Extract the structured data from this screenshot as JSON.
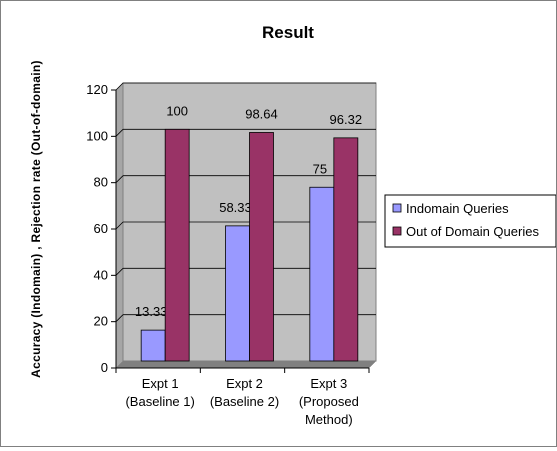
{
  "chart_data": {
    "type": "bar",
    "title": "Result",
    "ylabel": "Accuracy (Indomain) , Rejection rate (Out-of-domain)",
    "xlabel": "",
    "ylim": [
      0,
      120
    ],
    "ytick_step": 20,
    "yticks": [
      "0",
      "20",
      "40",
      "60",
      "80",
      "100",
      "120"
    ],
    "grid": true,
    "legend_position": "right",
    "categories": [
      [
        "Expt 1",
        "(Baseline 1)"
      ],
      [
        "Expt 2",
        "(Baseline 2)"
      ],
      [
        "Expt 3",
        "(Proposed",
        "Method)"
      ]
    ],
    "series": [
      {
        "name": "Indomain Queries",
        "color": "#9999ff",
        "values": [
          13.33,
          58.33,
          75
        ],
        "labels": [
          "13.33",
          "58.33",
          "75"
        ]
      },
      {
        "name": "Out of Domain Queries",
        "color": "#993366",
        "values": [
          100,
          98.64,
          96.32
        ],
        "labels": [
          "100",
          "98.64",
          "96.32"
        ]
      }
    ],
    "plot_background": "#c0c0c0"
  }
}
